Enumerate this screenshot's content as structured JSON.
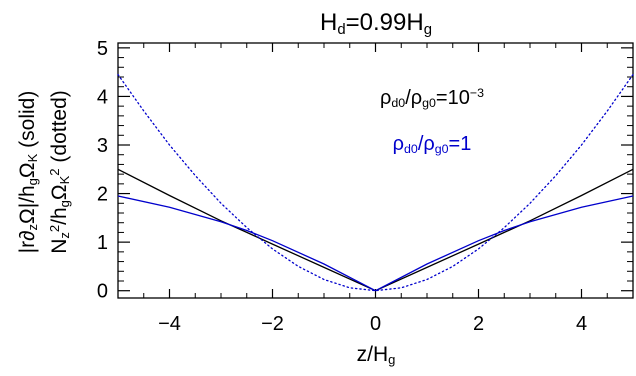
{
  "chart_data": {
    "type": "line",
    "title_parts": [
      "H",
      "d",
      "=0.99H",
      "g"
    ],
    "xlabel_parts": [
      "z/H",
      "g"
    ],
    "ylabel_solid_parts": [
      "|r∂",
      "z",
      "Ω|/h",
      "g",
      "Ω",
      "K",
      " (solid)"
    ],
    "ylabel_dotted_parts": [
      "N",
      "z",
      "2",
      "/h",
      "g",
      "Ω",
      "K",
      "2",
      " (dotted)"
    ],
    "xlim": [
      -5,
      5
    ],
    "ylim": [
      -0.15,
      5.1
    ],
    "xticks": [
      -4,
      -2,
      0,
      2,
      4
    ],
    "yticks": [
      0,
      1,
      2,
      3,
      4,
      5
    ],
    "grid": false,
    "annotations": [
      {
        "color": "#000000",
        "parts": [
          "ρ",
          "d0",
          "/ρ",
          "g0",
          "=10",
          "−3"
        ]
      },
      {
        "color": "#0000cc",
        "parts": [
          "ρ",
          "d0",
          "/ρ",
          "g0",
          "=1"
        ]
      }
    ],
    "series": [
      {
        "color": "#000000",
        "style": "solid",
        "x": [
          -5,
          -4,
          -3,
          -2.5,
          -2,
          -1,
          0,
          1,
          2,
          2.5,
          3,
          4,
          5
        ],
        "y": [
          2.5,
          1.96,
          1.44,
          1.2,
          0.96,
          0.48,
          0.0,
          0.48,
          0.96,
          1.2,
          1.44,
          1.96,
          2.5
        ]
      },
      {
        "color": "#0000cc",
        "style": "solid",
        "x": [
          -5,
          -4,
          -3,
          -2.5,
          -2,
          -1,
          0,
          1,
          2,
          2.5,
          3,
          4,
          5
        ],
        "y": [
          1.95,
          1.72,
          1.42,
          1.24,
          1.03,
          0.55,
          0.0,
          0.55,
          1.03,
          1.24,
          1.42,
          1.72,
          1.95
        ]
      },
      {
        "color": "#0000cc",
        "style": "dotted",
        "x": [
          -5,
          -4.5,
          -4,
          -3.5,
          -3,
          -2.5,
          -2,
          -1.5,
          -1,
          -0.5,
          0,
          0.5,
          1,
          1.5,
          2,
          2.5,
          3,
          3.5,
          4,
          4.5,
          5
        ],
        "y": [
          4.45,
          3.7,
          3.0,
          2.37,
          1.8,
          1.3,
          0.86,
          0.5,
          0.23,
          0.06,
          0.0,
          0.06,
          0.23,
          0.5,
          0.86,
          1.3,
          1.8,
          2.37,
          3.0,
          3.7,
          4.45
        ]
      }
    ]
  }
}
